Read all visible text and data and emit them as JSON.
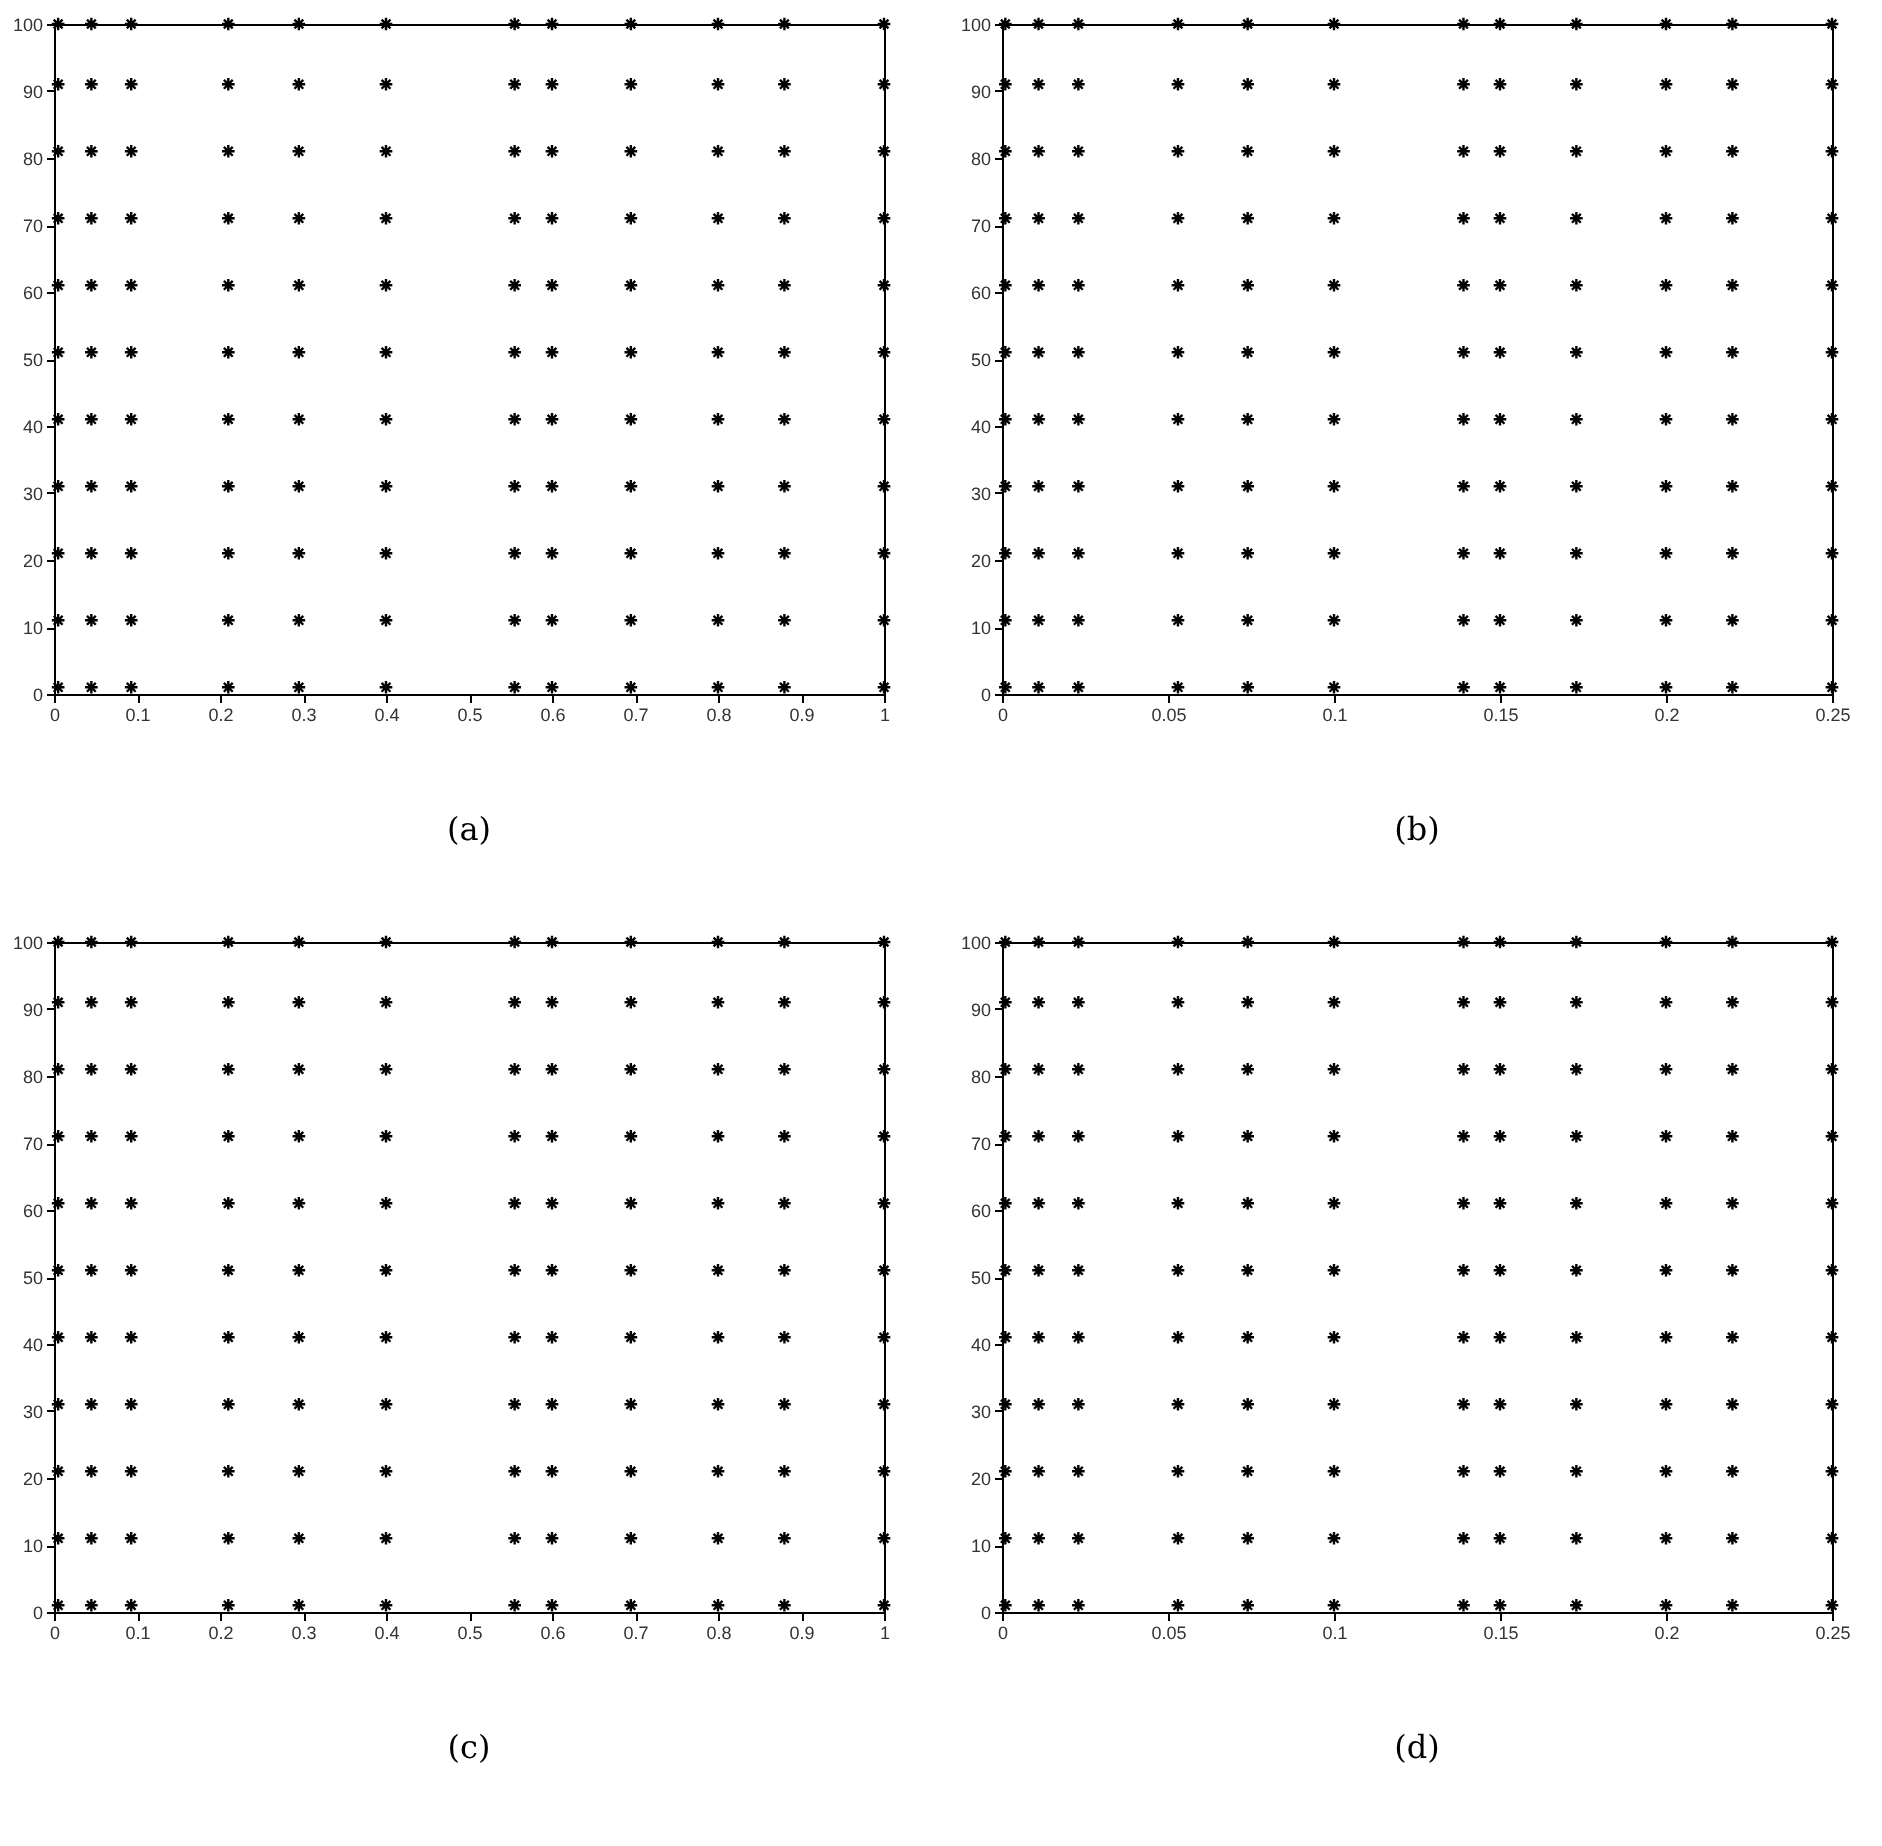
{
  "chart_data": [
    {
      "type": "scatter",
      "marker": "cross",
      "grid": false,
      "legend": false,
      "annotations": [
        "(a)"
      ],
      "xlim": [
        0,
        1
      ],
      "ylim": [
        0,
        100
      ],
      "xticks": [
        0,
        0.1,
        0.2,
        0.3,
        0.4,
        0.5,
        0.6,
        0.7,
        0.8,
        0.9,
        1
      ],
      "yticks": [
        0,
        10,
        20,
        30,
        40,
        50,
        60,
        70,
        80,
        90,
        100
      ],
      "series": [
        {
          "color": "#000000",
          "x": [
            0.005,
            0.005,
            0.005,
            0.005,
            0.005,
            0.005,
            0.005,
            0.005,
            0.005,
            0.005,
            0.005
          ],
          "values": [
            1,
            11,
            21,
            31,
            41,
            51,
            61,
            71,
            81,
            91,
            100
          ]
        },
        {
          "color": "#000000",
          "x": [
            0.045,
            0.045,
            0.045,
            0.045,
            0.045,
            0.045,
            0.045,
            0.045,
            0.045,
            0.045,
            0.045
          ],
          "values": [
            1,
            11,
            21,
            31,
            41,
            51,
            61,
            71,
            81,
            91,
            100
          ]
        },
        {
          "color": "#000000",
          "x": [
            0.093,
            0.093,
            0.093,
            0.093,
            0.093,
            0.093,
            0.093,
            0.093,
            0.093,
            0.093,
            0.093
          ],
          "values": [
            1,
            11,
            21,
            31,
            41,
            51,
            61,
            71,
            81,
            91,
            100
          ]
        },
        {
          "color": "#000000",
          "x": [
            0.21,
            0.21,
            0.21,
            0.21,
            0.21,
            0.21,
            0.21,
            0.21,
            0.21,
            0.21,
            0.21
          ],
          "values": [
            1,
            11,
            21,
            31,
            41,
            51,
            61,
            71,
            81,
            91,
            100
          ]
        },
        {
          "color": "#000000",
          "x": [
            0.295,
            0.295,
            0.295,
            0.295,
            0.295,
            0.295,
            0.295,
            0.295,
            0.295,
            0.295,
            0.295
          ],
          "values": [
            1,
            11,
            21,
            31,
            41,
            51,
            61,
            71,
            81,
            91,
            100
          ]
        },
        {
          "color": "#000000",
          "x": [
            0.4,
            0.4,
            0.4,
            0.4,
            0.4,
            0.4,
            0.4,
            0.4,
            0.4,
            0.4,
            0.4
          ],
          "values": [
            1,
            11,
            21,
            31,
            41,
            51,
            61,
            71,
            81,
            91,
            100
          ]
        },
        {
          "color": "#000000",
          "x": [
            0.555,
            0.555,
            0.555,
            0.555,
            0.555,
            0.555,
            0.555,
            0.555,
            0.555,
            0.555,
            0.555
          ],
          "values": [
            1,
            11,
            21,
            31,
            41,
            51,
            61,
            71,
            81,
            91,
            100
          ]
        },
        {
          "color": "#000000",
          "x": [
            0.6,
            0.6,
            0.6,
            0.6,
            0.6,
            0.6,
            0.6,
            0.6,
            0.6,
            0.6,
            0.6
          ],
          "values": [
            1,
            11,
            21,
            31,
            41,
            51,
            61,
            71,
            81,
            91,
            100
          ]
        },
        {
          "color": "#000000",
          "x": [
            0.695,
            0.695,
            0.695,
            0.695,
            0.695,
            0.695,
            0.695,
            0.695,
            0.695,
            0.695,
            0.695
          ],
          "values": [
            1,
            11,
            21,
            31,
            41,
            51,
            61,
            71,
            81,
            91,
            100
          ]
        },
        {
          "color": "#000000",
          "x": [
            0.8,
            0.8,
            0.8,
            0.8,
            0.8,
            0.8,
            0.8,
            0.8,
            0.8,
            0.8,
            0.8
          ],
          "values": [
            1,
            11,
            21,
            31,
            41,
            51,
            61,
            71,
            81,
            91,
            100
          ]
        },
        {
          "color": "#000000",
          "x": [
            0.88,
            0.88,
            0.88,
            0.88,
            0.88,
            0.88,
            0.88,
            0.88,
            0.88,
            0.88,
            0.88
          ],
          "values": [
            1,
            11,
            21,
            31,
            41,
            51,
            61,
            71,
            81,
            91,
            100
          ]
        },
        {
          "color": "#000000",
          "x": [
            1,
            1,
            1,
            1,
            1,
            1,
            1,
            1,
            1,
            1,
            1
          ],
          "values": [
            1,
            11,
            21,
            31,
            41,
            51,
            61,
            71,
            81,
            91,
            100
          ]
        }
      ]
    },
    {
      "type": "scatter",
      "marker": "cross",
      "grid": false,
      "legend": false,
      "annotations": [
        "(b)"
      ],
      "xlim": [
        0,
        0.25
      ],
      "ylim": [
        0,
        100
      ],
      "xticks": [
        0,
        0.05,
        0.1,
        0.15,
        0.2,
        0.25
      ],
      "yticks": [
        0,
        10,
        20,
        30,
        40,
        50,
        60,
        70,
        80,
        90,
        100
      ],
      "series": [
        {
          "color": "#000000",
          "x": [
            0.001,
            0.001,
            0.001,
            0.001,
            0.001,
            0.001,
            0.001,
            0.001,
            0.001,
            0.001,
            0.001
          ],
          "values": [
            1,
            11,
            21,
            31,
            41,
            51,
            61,
            71,
            81,
            91,
            100
          ]
        },
        {
          "color": "#000000",
          "x": [
            0.011,
            0.011,
            0.011,
            0.011,
            0.011,
            0.011,
            0.011,
            0.011,
            0.011,
            0.011,
            0.011
          ],
          "values": [
            1,
            11,
            21,
            31,
            41,
            51,
            61,
            71,
            81,
            91,
            100
          ]
        },
        {
          "color": "#000000",
          "x": [
            0.023,
            0.023,
            0.023,
            0.023,
            0.023,
            0.023,
            0.023,
            0.023,
            0.023,
            0.023,
            0.023
          ],
          "values": [
            1,
            11,
            21,
            31,
            41,
            51,
            61,
            71,
            81,
            91,
            100
          ]
        },
        {
          "color": "#000000",
          "x": [
            0.053,
            0.053,
            0.053,
            0.053,
            0.053,
            0.053,
            0.053,
            0.053,
            0.053,
            0.053,
            0.053
          ],
          "values": [
            1,
            11,
            21,
            31,
            41,
            51,
            61,
            71,
            81,
            91,
            100
          ]
        },
        {
          "color": "#000000",
          "x": [
            0.074,
            0.074,
            0.074,
            0.074,
            0.074,
            0.074,
            0.074,
            0.074,
            0.074,
            0.074,
            0.074
          ],
          "values": [
            1,
            11,
            21,
            31,
            41,
            51,
            61,
            71,
            81,
            91,
            100
          ]
        },
        {
          "color": "#000000",
          "x": [
            0.1,
            0.1,
            0.1,
            0.1,
            0.1,
            0.1,
            0.1,
            0.1,
            0.1,
            0.1,
            0.1
          ],
          "values": [
            1,
            11,
            21,
            31,
            41,
            51,
            61,
            71,
            81,
            91,
            100
          ]
        },
        {
          "color": "#000000",
          "x": [
            0.139,
            0.139,
            0.139,
            0.139,
            0.139,
            0.139,
            0.139,
            0.139,
            0.139,
            0.139,
            0.139
          ],
          "values": [
            1,
            11,
            21,
            31,
            41,
            51,
            61,
            71,
            81,
            91,
            100
          ]
        },
        {
          "color": "#000000",
          "x": [
            0.15,
            0.15,
            0.15,
            0.15,
            0.15,
            0.15,
            0.15,
            0.15,
            0.15,
            0.15,
            0.15
          ],
          "values": [
            1,
            11,
            21,
            31,
            41,
            51,
            61,
            71,
            81,
            91,
            100
          ]
        },
        {
          "color": "#000000",
          "x": [
            0.173,
            0.173,
            0.173,
            0.173,
            0.173,
            0.173,
            0.173,
            0.173,
            0.173,
            0.173,
            0.173
          ],
          "values": [
            1,
            11,
            21,
            31,
            41,
            51,
            61,
            71,
            81,
            91,
            100
          ]
        },
        {
          "color": "#000000",
          "x": [
            0.2,
            0.2,
            0.2,
            0.2,
            0.2,
            0.2,
            0.2,
            0.2,
            0.2,
            0.2,
            0.2
          ],
          "values": [
            1,
            11,
            21,
            31,
            41,
            51,
            61,
            71,
            81,
            91,
            100
          ]
        },
        {
          "color": "#000000",
          "x": [
            0.22,
            0.22,
            0.22,
            0.22,
            0.22,
            0.22,
            0.22,
            0.22,
            0.22,
            0.22,
            0.22
          ],
          "values": [
            1,
            11,
            21,
            31,
            41,
            51,
            61,
            71,
            81,
            91,
            100
          ]
        },
        {
          "color": "#000000",
          "x": [
            0.25,
            0.25,
            0.25,
            0.25,
            0.25,
            0.25,
            0.25,
            0.25,
            0.25,
            0.25,
            0.25
          ],
          "values": [
            1,
            11,
            21,
            31,
            41,
            51,
            61,
            71,
            81,
            91,
            100
          ]
        }
      ]
    },
    {
      "type": "scatter",
      "marker": "cross",
      "grid": false,
      "legend": false,
      "annotations": [
        "(c)"
      ],
      "xlim": [
        0,
        1
      ],
      "ylim": [
        0,
        100
      ],
      "xticks": [
        0,
        0.1,
        0.2,
        0.3,
        0.4,
        0.5,
        0.6,
        0.7,
        0.8,
        0.9,
        1
      ],
      "yticks": [
        0,
        10,
        20,
        30,
        40,
        50,
        60,
        70,
        80,
        90,
        100
      ],
      "series": [
        {
          "color": "#000000",
          "x": [
            0.005,
            0.005,
            0.005,
            0.005,
            0.005,
            0.005,
            0.005,
            0.005,
            0.005,
            0.005,
            0.005
          ],
          "values": [
            1,
            11,
            21,
            31,
            41,
            51,
            61,
            71,
            81,
            91,
            100
          ]
        },
        {
          "color": "#000000",
          "x": [
            0.045,
            0.045,
            0.045,
            0.045,
            0.045,
            0.045,
            0.045,
            0.045,
            0.045,
            0.045,
            0.045
          ],
          "values": [
            1,
            11,
            21,
            31,
            41,
            51,
            61,
            71,
            81,
            91,
            100
          ]
        },
        {
          "color": "#000000",
          "x": [
            0.093,
            0.093,
            0.093,
            0.093,
            0.093,
            0.093,
            0.093,
            0.093,
            0.093,
            0.093,
            0.093
          ],
          "values": [
            1,
            11,
            21,
            31,
            41,
            51,
            61,
            71,
            81,
            91,
            100
          ]
        },
        {
          "color": "#000000",
          "x": [
            0.21,
            0.21,
            0.21,
            0.21,
            0.21,
            0.21,
            0.21,
            0.21,
            0.21,
            0.21,
            0.21
          ],
          "values": [
            1,
            11,
            21,
            31,
            41,
            51,
            61,
            71,
            81,
            91,
            100
          ]
        },
        {
          "color": "#000000",
          "x": [
            0.295,
            0.295,
            0.295,
            0.295,
            0.295,
            0.295,
            0.295,
            0.295,
            0.295,
            0.295,
            0.295
          ],
          "values": [
            1,
            11,
            21,
            31,
            41,
            51,
            61,
            71,
            81,
            91,
            100
          ]
        },
        {
          "color": "#000000",
          "x": [
            0.4,
            0.4,
            0.4,
            0.4,
            0.4,
            0.4,
            0.4,
            0.4,
            0.4,
            0.4,
            0.4
          ],
          "values": [
            1,
            11,
            21,
            31,
            41,
            51,
            61,
            71,
            81,
            91,
            100
          ]
        },
        {
          "color": "#000000",
          "x": [
            0.555,
            0.555,
            0.555,
            0.555,
            0.555,
            0.555,
            0.555,
            0.555,
            0.555,
            0.555,
            0.555
          ],
          "values": [
            1,
            11,
            21,
            31,
            41,
            51,
            61,
            71,
            81,
            91,
            100
          ]
        },
        {
          "color": "#000000",
          "x": [
            0.6,
            0.6,
            0.6,
            0.6,
            0.6,
            0.6,
            0.6,
            0.6,
            0.6,
            0.6,
            0.6
          ],
          "values": [
            1,
            11,
            21,
            31,
            41,
            51,
            61,
            71,
            81,
            91,
            100
          ]
        },
        {
          "color": "#000000",
          "x": [
            0.695,
            0.695,
            0.695,
            0.695,
            0.695,
            0.695,
            0.695,
            0.695,
            0.695,
            0.695,
            0.695
          ],
          "values": [
            1,
            11,
            21,
            31,
            41,
            51,
            61,
            71,
            81,
            91,
            100
          ]
        },
        {
          "color": "#000000",
          "x": [
            0.8,
            0.8,
            0.8,
            0.8,
            0.8,
            0.8,
            0.8,
            0.8,
            0.8,
            0.8,
            0.8
          ],
          "values": [
            1,
            11,
            21,
            31,
            41,
            51,
            61,
            71,
            81,
            91,
            100
          ]
        },
        {
          "color": "#000000",
          "x": [
            0.88,
            0.88,
            0.88,
            0.88,
            0.88,
            0.88,
            0.88,
            0.88,
            0.88,
            0.88,
            0.88
          ],
          "values": [
            1,
            11,
            21,
            31,
            41,
            51,
            61,
            71,
            81,
            91,
            100
          ]
        },
        {
          "color": "#000000",
          "x": [
            1,
            1,
            1,
            1,
            1,
            1,
            1,
            1,
            1,
            1,
            1
          ],
          "values": [
            1,
            11,
            21,
            31,
            41,
            51,
            61,
            71,
            81,
            91,
            100
          ]
        }
      ]
    },
    {
      "type": "scatter",
      "marker": "cross",
      "grid": false,
      "legend": false,
      "annotations": [
        "(d)"
      ],
      "xlim": [
        0,
        0.25
      ],
      "ylim": [
        0,
        100
      ],
      "xticks": [
        0,
        0.05,
        0.1,
        0.15,
        0.2,
        0.25
      ],
      "yticks": [
        0,
        10,
        20,
        30,
        40,
        50,
        60,
        70,
        80,
        90,
        100
      ],
      "series": [
        {
          "color": "#000000",
          "x": [
            0.001,
            0.001,
            0.001,
            0.001,
            0.001,
            0.001,
            0.001,
            0.001,
            0.001,
            0.001,
            0.001
          ],
          "values": [
            1,
            11,
            21,
            31,
            41,
            51,
            61,
            71,
            81,
            91,
            100
          ]
        },
        {
          "color": "#000000",
          "x": [
            0.011,
            0.011,
            0.011,
            0.011,
            0.011,
            0.011,
            0.011,
            0.011,
            0.011,
            0.011,
            0.011
          ],
          "values": [
            1,
            11,
            21,
            31,
            41,
            51,
            61,
            71,
            81,
            91,
            100
          ]
        },
        {
          "color": "#000000",
          "x": [
            0.023,
            0.023,
            0.023,
            0.023,
            0.023,
            0.023,
            0.023,
            0.023,
            0.023,
            0.023,
            0.023
          ],
          "values": [
            1,
            11,
            21,
            31,
            41,
            51,
            61,
            71,
            81,
            91,
            100
          ]
        },
        {
          "color": "#000000",
          "x": [
            0.053,
            0.053,
            0.053,
            0.053,
            0.053,
            0.053,
            0.053,
            0.053,
            0.053,
            0.053,
            0.053
          ],
          "values": [
            1,
            11,
            21,
            31,
            41,
            51,
            61,
            71,
            81,
            91,
            100
          ]
        },
        {
          "color": "#000000",
          "x": [
            0.074,
            0.074,
            0.074,
            0.074,
            0.074,
            0.074,
            0.074,
            0.074,
            0.074,
            0.074,
            0.074
          ],
          "values": [
            1,
            11,
            21,
            31,
            41,
            51,
            61,
            71,
            81,
            91,
            100
          ]
        },
        {
          "color": "#000000",
          "x": [
            0.1,
            0.1,
            0.1,
            0.1,
            0.1,
            0.1,
            0.1,
            0.1,
            0.1,
            0.1,
            0.1
          ],
          "values": [
            1,
            11,
            21,
            31,
            41,
            51,
            61,
            71,
            81,
            91,
            100
          ]
        },
        {
          "color": "#000000",
          "x": [
            0.139,
            0.139,
            0.139,
            0.139,
            0.139,
            0.139,
            0.139,
            0.139,
            0.139,
            0.139,
            0.139
          ],
          "values": [
            1,
            11,
            21,
            31,
            41,
            51,
            61,
            71,
            81,
            91,
            100
          ]
        },
        {
          "color": "#000000",
          "x": [
            0.15,
            0.15,
            0.15,
            0.15,
            0.15,
            0.15,
            0.15,
            0.15,
            0.15,
            0.15,
            0.15
          ],
          "values": [
            1,
            11,
            21,
            31,
            41,
            51,
            61,
            71,
            81,
            91,
            100
          ]
        },
        {
          "color": "#000000",
          "x": [
            0.173,
            0.173,
            0.173,
            0.173,
            0.173,
            0.173,
            0.173,
            0.173,
            0.173,
            0.173,
            0.173
          ],
          "values": [
            1,
            11,
            21,
            31,
            41,
            51,
            61,
            71,
            81,
            91,
            100
          ]
        },
        {
          "color": "#000000",
          "x": [
            0.2,
            0.2,
            0.2,
            0.2,
            0.2,
            0.2,
            0.2,
            0.2,
            0.2,
            0.2,
            0.2
          ],
          "values": [
            1,
            11,
            21,
            31,
            41,
            51,
            61,
            71,
            81,
            91,
            100
          ]
        },
        {
          "color": "#000000",
          "x": [
            0.22,
            0.22,
            0.22,
            0.22,
            0.22,
            0.22,
            0.22,
            0.22,
            0.22,
            0.22,
            0.22
          ],
          "values": [
            1,
            11,
            21,
            31,
            41,
            51,
            61,
            71,
            81,
            91,
            100
          ]
        },
        {
          "color": "#000000",
          "x": [
            0.25,
            0.25,
            0.25,
            0.25,
            0.25,
            0.25,
            0.25,
            0.25,
            0.25,
            0.25,
            0.25
          ],
          "values": [
            1,
            11,
            21,
            31,
            41,
            51,
            61,
            71,
            81,
            91,
            100
          ]
        }
      ]
    }
  ]
}
